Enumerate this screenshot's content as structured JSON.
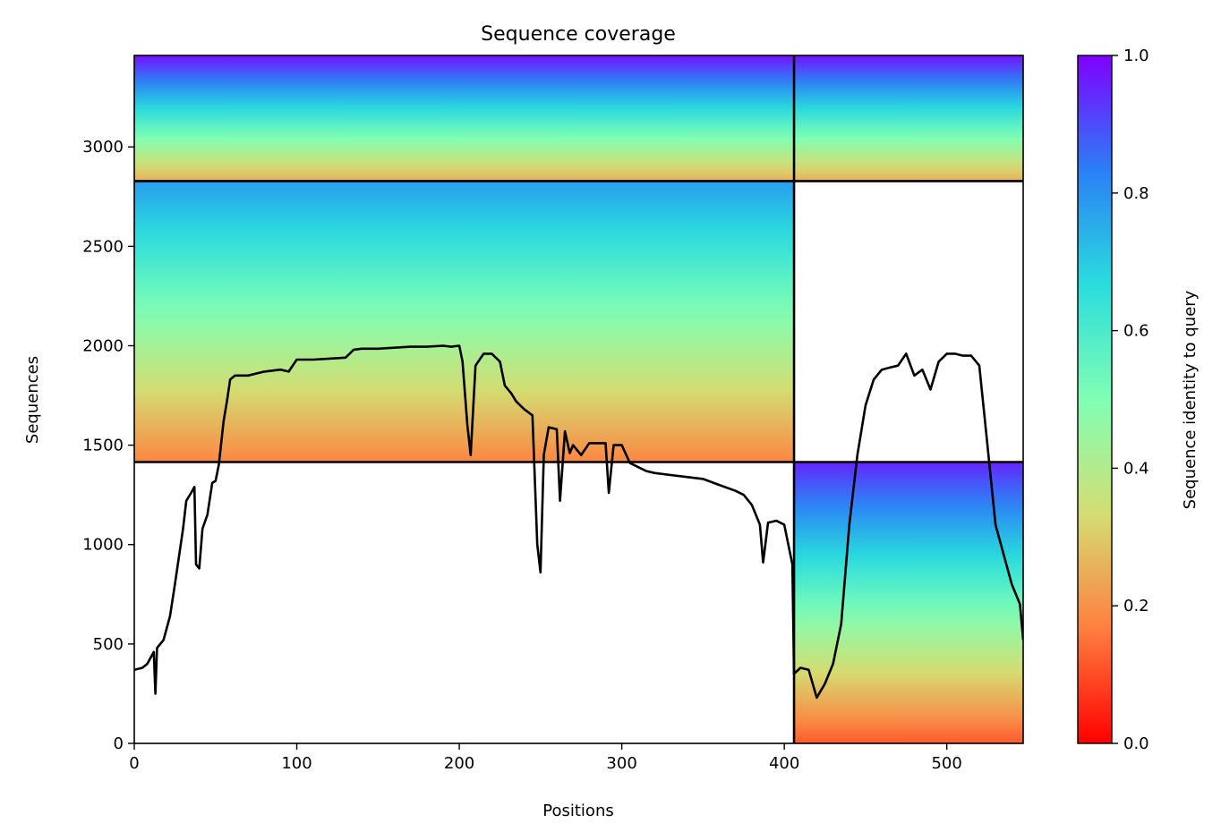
{
  "chart_data": {
    "type": "heatmap",
    "title": "Sequence coverage",
    "xlabel": "Positions",
    "ylabel": "Sequences",
    "xlim": [
      0,
      547
    ],
    "ylim": [
      0,
      3460
    ],
    "x_ticks": [
      0,
      100,
      200,
      300,
      400,
      500
    ],
    "y_ticks": [
      0,
      500,
      1000,
      1500,
      2000,
      2500,
      3000
    ],
    "colorbar": {
      "label": "Sequence identity to query",
      "range": [
        0,
        1
      ],
      "ticks": [
        "0.0",
        "0.2",
        "0.4",
        "0.6",
        "0.8",
        "1.0"
      ],
      "colormap": "rainbow",
      "stops": [
        "#ff0000",
        "#ff7f3f",
        "#d4dd72",
        "#80ffb4",
        "#2adddd",
        "#2b7ff6",
        "#8000ff"
      ]
    },
    "grid": false,
    "chain_boundary_x": 406,
    "group_boundaries_y": [
      1415,
      2828
    ],
    "blocks": [
      {
        "x_start": 0,
        "x_end": 406,
        "y_start": 1415,
        "y_end": 2828,
        "identity_top": 0.78,
        "identity_bottom": 0.18
      },
      {
        "x_start": 0,
        "x_end": 406,
        "y_start": 2828,
        "y_end": 3460,
        "identity_top": 0.98,
        "identity_bottom": 0.25
      },
      {
        "x_start": 406,
        "x_end": 547,
        "y_start": 2828,
        "y_end": 3460,
        "identity_top": 0.98,
        "identity_bottom": 0.25
      },
      {
        "x_start": 406,
        "x_end": 547,
        "y_start": 0,
        "y_end": 1415,
        "identity_top": 0.95,
        "identity_bottom": 0.12
      }
    ],
    "coverage_line": {
      "color": "#000000",
      "x": [
        0,
        5,
        8,
        12,
        13,
        14,
        18,
        22,
        25,
        30,
        32,
        35,
        37,
        38,
        40,
        42,
        45,
        48,
        50,
        52,
        55,
        57,
        59,
        62,
        65,
        70,
        80,
        90,
        95,
        100,
        110,
        120,
        130,
        135,
        140,
        150,
        160,
        170,
        180,
        190,
        195,
        200,
        202,
        205,
        207,
        210,
        215,
        220,
        225,
        228,
        232,
        235,
        240,
        245,
        248,
        250,
        252,
        255,
        260,
        262,
        265,
        268,
        270,
        275,
        280,
        290,
        292,
        295,
        300,
        305,
        310,
        315,
        320,
        330,
        340,
        350,
        360,
        370,
        375,
        380,
        383,
        385,
        387,
        390,
        395,
        400,
        405,
        406,
        410,
        415,
        420,
        425,
        430,
        435,
        440,
        445,
        450,
        455,
        460,
        465,
        470,
        475,
        480,
        485,
        490,
        495,
        500,
        505,
        510,
        515,
        520,
        525,
        530,
        535,
        540,
        545,
        547
      ],
      "y": [
        370,
        380,
        400,
        460,
        250,
        480,
        520,
        640,
        800,
        1080,
        1220,
        1260,
        1290,
        900,
        880,
        1080,
        1150,
        1310,
        1320,
        1400,
        1620,
        1720,
        1830,
        1850,
        1850,
        1850,
        1870,
        1880,
        1870,
        1930,
        1930,
        1935,
        1940,
        1980,
        1985,
        1985,
        1990,
        1995,
        1995,
        2000,
        1995,
        2000,
        1920,
        1600,
        1450,
        1900,
        1960,
        1960,
        1920,
        1800,
        1760,
        1720,
        1680,
        1650,
        1000,
        860,
        1450,
        1590,
        1580,
        1220,
        1570,
        1460,
        1500,
        1450,
        1510,
        1510,
        1260,
        1500,
        1500,
        1410,
        1390,
        1370,
        1360,
        1350,
        1340,
        1330,
        1300,
        1270,
        1250,
        1200,
        1140,
        1100,
        910,
        1110,
        1120,
        1100,
        900,
        350,
        380,
        370,
        230,
        300,
        400,
        600,
        1100,
        1450,
        1700,
        1830,
        1880,
        1890,
        1900,
        1960,
        1850,
        1880,
        1780,
        1920,
        1960,
        1960,
        1950,
        1950,
        1900,
        1500,
        1100,
        950,
        800,
        700,
        520
      ]
    }
  }
}
